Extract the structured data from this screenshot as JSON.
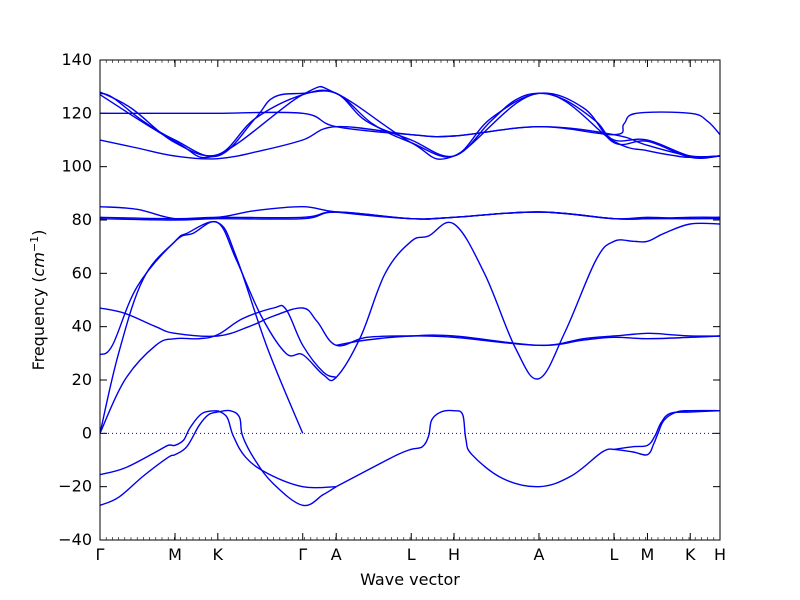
{
  "chart_data": {
    "type": "line",
    "xlabel": "Wave vector",
    "ylabel": "Frequency",
    "ylabel_unit_base": "cm",
    "ylabel_unit_exp": "−1",
    "ylim": [
      -40,
      140
    ],
    "yticks": [
      -40,
      -20,
      0,
      20,
      40,
      60,
      80,
      100,
      120,
      140
    ],
    "xticks": [
      {
        "label": "Γ",
        "x": 0
      },
      {
        "label": "M",
        "x": 0.121
      },
      {
        "label": "K",
        "x": 0.19
      },
      {
        "label": "Γ",
        "x": 0.327
      },
      {
        "label": "A",
        "x": 0.381
      },
      {
        "label": "L",
        "x": 0.502
      },
      {
        "label": "H",
        "x": 0.571
      },
      {
        "label": "A",
        "x": 0.708
      },
      {
        "label": "L",
        "x": 0.829
      },
      {
        "label": "M",
        "x": 0.883
      },
      {
        "label": "K",
        "x": 0.952
      },
      {
        "label": "H",
        "x": 1.0
      }
    ],
    "grid": false,
    "zero_line": true,
    "line_color": "#0000ee",
    "series": [
      {
        "points": [
          [
            0,
            -27
          ],
          [
            0.03,
            -24
          ],
          [
            0.07,
            -16
          ],
          [
            0.11,
            -9
          ],
          [
            0.121,
            -8
          ],
          [
            0.14,
            -5
          ],
          [
            0.16,
            3
          ],
          [
            0.175,
            7
          ],
          [
            0.19,
            8
          ]
        ]
      },
      {
        "points": [
          [
            0,
            -15.5
          ],
          [
            0.04,
            -13
          ],
          [
            0.09,
            -7
          ],
          [
            0.11,
            -4.5
          ],
          [
            0.121,
            -4.5
          ],
          [
            0.135,
            -2.5
          ],
          [
            0.145,
            2
          ],
          [
            0.165,
            7.5
          ],
          [
            0.19,
            8.5
          ]
        ]
      },
      {
        "points": [
          [
            0.19,
            8
          ],
          [
            0.21,
            8.5
          ],
          [
            0.225,
            6
          ],
          [
            0.23,
            -1
          ],
          [
            0.25,
            -10
          ],
          [
            0.28,
            -19
          ],
          [
            0.327,
            -27
          ],
          [
            0.36,
            -23
          ],
          [
            0.381,
            -20
          ]
        ]
      },
      {
        "points": [
          [
            0.19,
            8.5
          ],
          [
            0.205,
            6
          ],
          [
            0.215,
            -1
          ],
          [
            0.235,
            -9
          ],
          [
            0.27,
            -15
          ],
          [
            0.327,
            -20
          ],
          [
            0.381,
            -20
          ]
        ]
      },
      {
        "points": [
          [
            0.381,
            -20
          ],
          [
            0.43,
            -14
          ],
          [
            0.48,
            -8
          ],
          [
            0.502,
            -6
          ],
          [
            0.52,
            -5
          ],
          [
            0.53,
            -1
          ],
          [
            0.535,
            5
          ],
          [
            0.55,
            8
          ],
          [
            0.571,
            8.5
          ],
          [
            0.585,
            7
          ],
          [
            0.59,
            -2
          ],
          [
            0.6,
            -8
          ],
          [
            0.65,
            -17
          ],
          [
            0.708,
            -20
          ],
          [
            0.76,
            -16
          ],
          [
            0.81,
            -7
          ],
          [
            0.829,
            -6
          ]
        ]
      },
      {
        "points": [
          [
            0.829,
            -6
          ],
          [
            0.86,
            -7
          ],
          [
            0.883,
            -8
          ],
          [
            0.893,
            -4
          ],
          [
            0.9,
            0
          ],
          [
            0.91,
            5
          ],
          [
            0.93,
            8
          ],
          [
            0.952,
            8.5
          ],
          [
            1.0,
            8.5
          ]
        ]
      },
      {
        "points": [
          [
            0.829,
            -6
          ],
          [
            0.86,
            -5
          ],
          [
            0.883,
            -4.5
          ],
          [
            0.895,
            -1
          ],
          [
            0.905,
            4
          ],
          [
            0.92,
            7.5
          ],
          [
            0.952,
            8
          ],
          [
            1.0,
            8.5
          ]
        ]
      },
      {
        "points": [
          [
            0,
            0
          ],
          [
            0.03,
            30
          ],
          [
            0.07,
            58
          ],
          [
            0.121,
            72
          ],
          [
            0.14,
            75
          ],
          [
            0.19,
            79
          ],
          [
            0.22,
            66
          ],
          [
            0.27,
            32
          ],
          [
            0.327,
            0
          ]
        ]
      },
      {
        "points": [
          [
            0,
            0
          ],
          [
            0.04,
            20
          ],
          [
            0.09,
            33
          ],
          [
            0.121,
            35.5
          ],
          [
            0.16,
            35.5
          ],
          [
            0.19,
            37
          ],
          [
            0.23,
            43
          ],
          [
            0.28,
            47
          ],
          [
            0.3,
            46.5
          ],
          [
            0.327,
            33
          ],
          [
            0.36,
            23
          ],
          [
            0.381,
            21
          ]
        ]
      },
      {
        "points": [
          [
            0,
            29.5
          ],
          [
            0.02,
            33
          ],
          [
            0.06,
            55
          ],
          [
            0.121,
            72
          ],
          [
            0.15,
            75
          ],
          [
            0.19,
            79
          ],
          [
            0.22,
            65
          ],
          [
            0.26,
            44
          ],
          [
            0.3,
            30
          ],
          [
            0.327,
            29.5
          ],
          [
            0.36,
            22
          ],
          [
            0.381,
            21
          ],
          [
            0.42,
            36
          ],
          [
            0.46,
            60
          ],
          [
            0.502,
            72
          ],
          [
            0.53,
            74
          ],
          [
            0.571,
            78.5
          ],
          [
            0.62,
            60
          ],
          [
            0.67,
            32
          ],
          [
            0.708,
            20.5
          ],
          [
            0.75,
            38
          ],
          [
            0.8,
            65
          ],
          [
            0.829,
            72
          ],
          [
            0.86,
            72
          ],
          [
            0.883,
            72
          ],
          [
            0.91,
            75
          ],
          [
            0.952,
            78.5
          ],
          [
            1.0,
            78.5
          ]
        ]
      },
      {
        "points": [
          [
            0,
            47
          ],
          [
            0.04,
            45
          ],
          [
            0.09,
            40
          ],
          [
            0.121,
            37.5
          ],
          [
            0.19,
            36.5
          ],
          [
            0.24,
            40
          ],
          [
            0.28,
            44
          ],
          [
            0.327,
            47
          ],
          [
            0.35,
            42
          ],
          [
            0.381,
            33
          ],
          [
            0.43,
            36
          ],
          [
            0.502,
            36.5
          ],
          [
            0.571,
            36
          ],
          [
            0.708,
            33
          ],
          [
            0.78,
            35.5
          ],
          [
            0.829,
            36.5
          ],
          [
            0.883,
            37.5
          ],
          [
            0.92,
            37
          ],
          [
            0.952,
            36.5
          ],
          [
            1.0,
            36.5
          ]
        ]
      },
      {
        "points": [
          [
            0.381,
            33
          ],
          [
            0.43,
            35
          ],
          [
            0.502,
            36.5
          ],
          [
            0.571,
            36.5
          ],
          [
            0.708,
            33
          ],
          [
            0.78,
            35
          ],
          [
            0.829,
            36
          ],
          [
            0.883,
            35.5
          ],
          [
            0.952,
            36
          ],
          [
            1.0,
            36.5
          ]
        ]
      },
      {
        "points": [
          [
            0,
            80.5
          ],
          [
            0.121,
            80
          ],
          [
            0.19,
            80.5
          ],
          [
            0.327,
            80.5
          ],
          [
            0.381,
            83
          ],
          [
            0.502,
            80.5
          ],
          [
            0.571,
            81
          ],
          [
            0.708,
            83
          ],
          [
            0.829,
            80.5
          ],
          [
            0.883,
            80.5
          ],
          [
            0.952,
            81
          ],
          [
            1.0,
            81
          ]
        ]
      },
      {
        "points": [
          [
            0,
            81
          ],
          [
            0.121,
            80.5
          ],
          [
            0.19,
            81
          ],
          [
            0.327,
            81
          ],
          [
            0.381,
            83
          ],
          [
            0.502,
            80.5
          ],
          [
            0.571,
            81
          ],
          [
            0.708,
            83
          ],
          [
            0.829,
            80.5
          ],
          [
            0.883,
            80.5
          ],
          [
            0.952,
            80.5
          ],
          [
            1.0,
            80.5
          ]
        ]
      },
      {
        "points": [
          [
            0,
            85
          ],
          [
            0.06,
            84
          ],
          [
            0.121,
            80.5
          ],
          [
            0.19,
            81
          ],
          [
            0.25,
            83.5
          ],
          [
            0.327,
            85
          ],
          [
            0.381,
            83
          ],
          [
            0.502,
            80.5
          ],
          [
            0.571,
            81
          ],
          [
            0.708,
            83
          ],
          [
            0.829,
            80.5
          ],
          [
            0.883,
            81
          ],
          [
            0.952,
            80.5
          ],
          [
            1.0,
            81
          ]
        ]
      },
      {
        "points": [
          [
            0,
            110
          ],
          [
            0.06,
            107
          ],
          [
            0.121,
            104
          ],
          [
            0.19,
            103
          ],
          [
            0.26,
            106
          ],
          [
            0.327,
            110
          ],
          [
            0.381,
            115
          ],
          [
            0.502,
            112
          ],
          [
            0.571,
            111.5
          ],
          [
            0.708,
            115
          ],
          [
            0.829,
            112
          ],
          [
            0.883,
            108
          ],
          [
            0.952,
            104
          ],
          [
            1.0,
            104
          ]
        ]
      },
      {
        "points": [
          [
            0,
            120
          ],
          [
            0.121,
            120
          ],
          [
            0.19,
            120
          ],
          [
            0.327,
            120
          ],
          [
            0.381,
            115
          ],
          [
            0.502,
            112
          ],
          [
            0.571,
            111.5
          ],
          [
            0.708,
            115
          ],
          [
            0.829,
            112
          ],
          [
            0.845,
            116
          ],
          [
            0.865,
            120
          ],
          [
            0.952,
            120
          ],
          [
            0.98,
            117
          ],
          [
            1.0,
            112
          ]
        ]
      },
      {
        "points": [
          [
            0,
            127.5
          ],
          [
            0.02,
            126
          ],
          [
            0.07,
            117
          ],
          [
            0.121,
            110
          ],
          [
            0.19,
            104
          ],
          [
            0.25,
            118
          ],
          [
            0.28,
            126
          ],
          [
            0.327,
            127.5
          ],
          [
            0.381,
            127.5
          ],
          [
            0.43,
            117
          ],
          [
            0.502,
            110
          ],
          [
            0.571,
            104
          ],
          [
            0.63,
            117
          ],
          [
            0.67,
            125
          ],
          [
            0.708,
            127.5
          ],
          [
            0.75,
            125
          ],
          [
            0.8,
            117
          ],
          [
            0.829,
            110
          ],
          [
            0.883,
            110
          ],
          [
            0.952,
            104
          ],
          [
            1.0,
            104
          ]
        ]
      },
      {
        "points": [
          [
            0,
            128
          ],
          [
            0.05,
            122
          ],
          [
            0.121,
            109
          ],
          [
            0.19,
            104.5
          ],
          [
            0.25,
            118
          ],
          [
            0.327,
            127
          ],
          [
            0.381,
            127.5
          ],
          [
            0.44,
            116
          ],
          [
            0.502,
            109
          ],
          [
            0.571,
            104
          ],
          [
            0.63,
            118
          ],
          [
            0.708,
            127.5
          ],
          [
            0.78,
            122
          ],
          [
            0.829,
            109
          ],
          [
            0.883,
            109.5
          ],
          [
            0.952,
            103.5
          ],
          [
            1.0,
            104
          ]
        ]
      },
      {
        "points": [
          [
            0,
            127
          ],
          [
            0.121,
            109.5
          ],
          [
            0.19,
            104.5
          ],
          [
            0.327,
            127
          ],
          [
            0.381,
            127.5
          ],
          [
            0.502,
            109
          ],
          [
            0.571,
            104
          ],
          [
            0.708,
            127.5
          ],
          [
            0.829,
            109.5
          ],
          [
            0.883,
            106
          ],
          [
            0.93,
            104
          ],
          [
            0.952,
            103.5
          ],
          [
            1.0,
            104
          ]
        ]
      }
    ]
  }
}
